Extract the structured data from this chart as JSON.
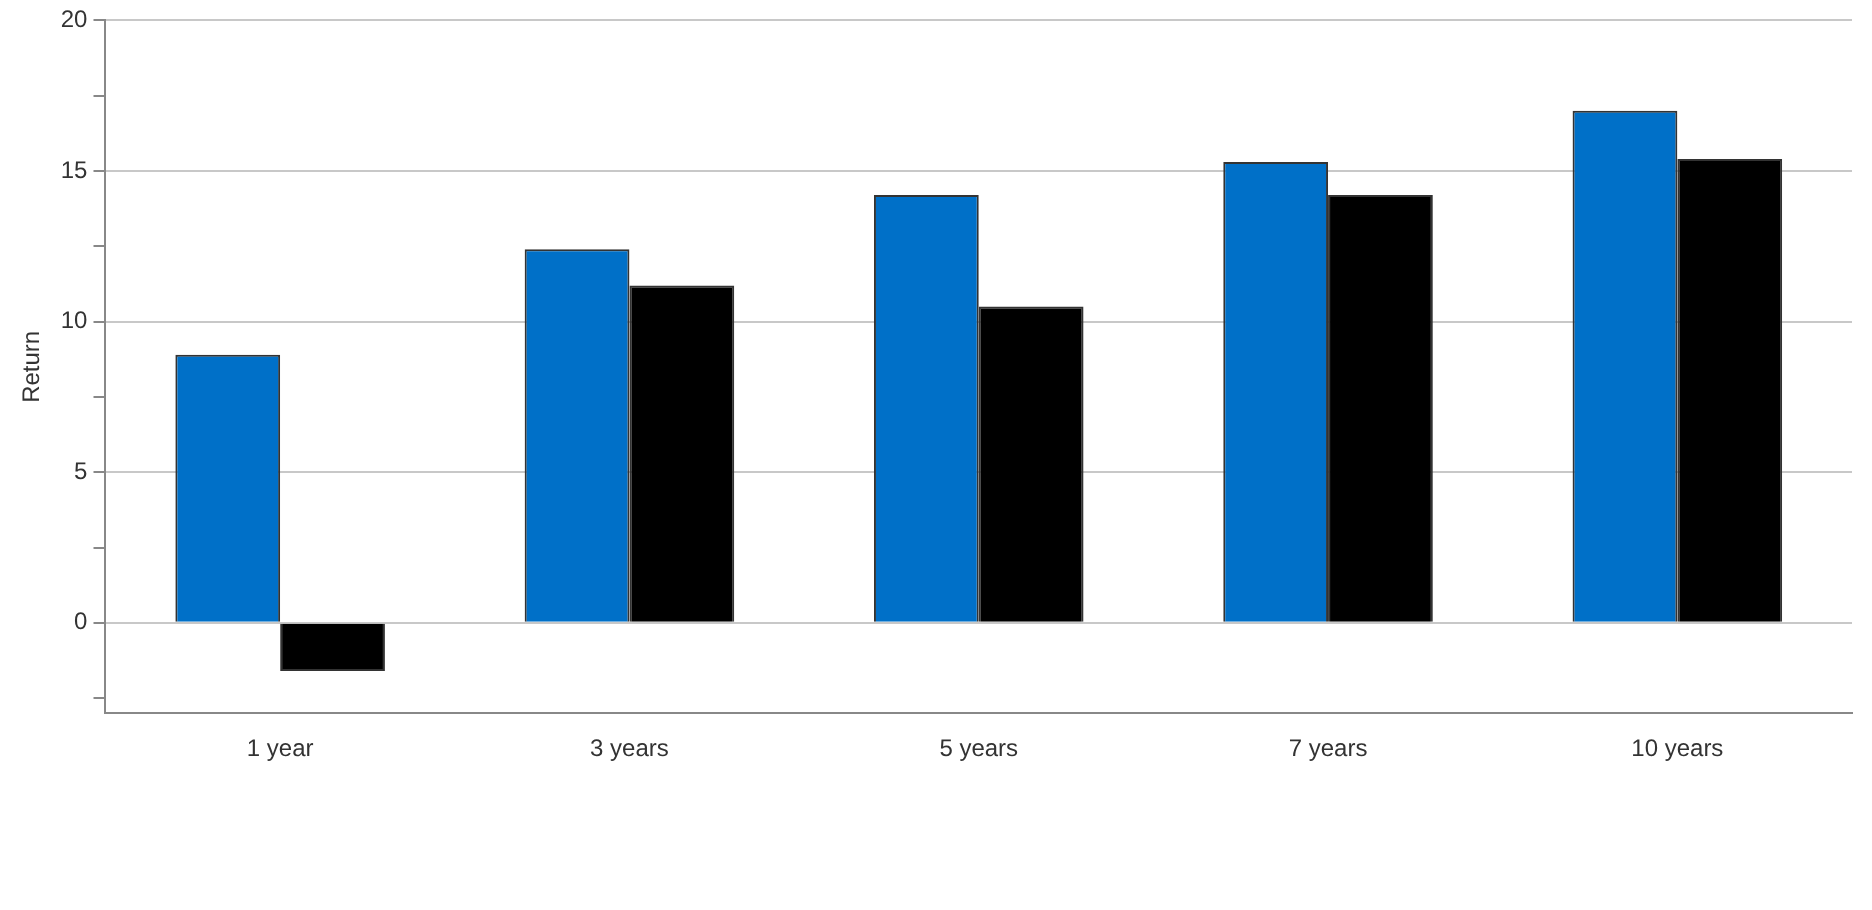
{
  "chart_data": {
    "type": "bar",
    "ylabel": "Return",
    "categories": [
      "1 year",
      "3 years",
      "5 years",
      "7 years",
      "10 years"
    ],
    "series": [
      {
        "color": "#0070c8",
        "values": [
          8.9,
          12.4,
          14.2,
          15.3,
          17.0
        ]
      },
      {
        "color": "#000000",
        "values": [
          -1.6,
          11.2,
          10.5,
          14.2,
          15.4
        ]
      }
    ],
    "ylim": [
      -3,
      20
    ],
    "yticks": [
      {
        "value": -2.5,
        "label": null
      },
      0,
      {
        "value": 2.5,
        "label": null
      },
      5,
      {
        "value": 7.5,
        "label": null
      },
      10,
      {
        "value": 12.5,
        "label": null
      },
      15,
      {
        "value": 17.5,
        "label": null
      },
      20
    ],
    "grid": "y",
    "legend": false
  }
}
